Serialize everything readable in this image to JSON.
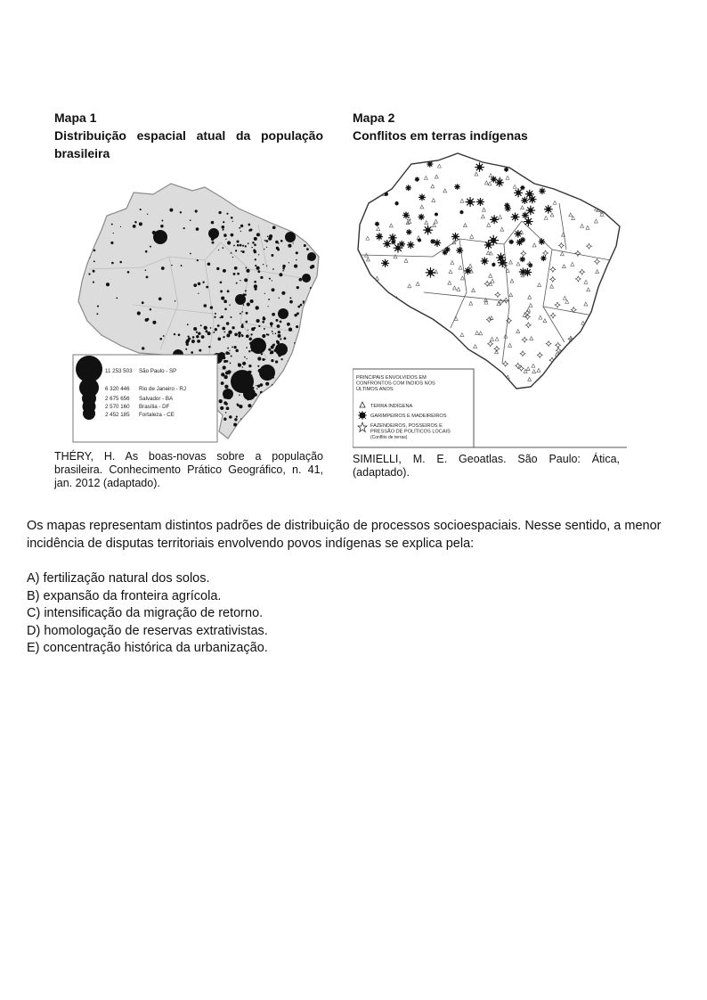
{
  "map1": {
    "heading": "Mapa 1",
    "subtitle": "Distribuição espacial atual da população brasileira",
    "legend": [
      {
        "value": "11 253 503",
        "city": "São Paulo - SP"
      },
      {
        "value": "6 320 446",
        "city": "Rio de Janeiro - RJ"
      },
      {
        "value": "2 675 656",
        "city": "Salvador - BA"
      },
      {
        "value": "2 570 160",
        "city": "Brasília - DF"
      },
      {
        "value": "2 452 185",
        "city": "Fortaleza - CE"
      }
    ],
    "source": "THÉRY, H. As boas-novas sobre a população brasileira. Conhecimento Prático Geográfico, n. 41, jan. 2012 (adaptado)."
  },
  "map2": {
    "heading": "Mapa 2",
    "subtitle": "Conflitos em terras indígenas",
    "legend_title": "PRINCIPAIS ENVOLVIDOS EM CONFRONTOS COM ÍNDIOS NOS ÚLTIMOS ANOS",
    "legend_items": [
      {
        "symbol": "triangle-icon",
        "label": "TERRA INDÍGENA"
      },
      {
        "symbol": "burst-icon",
        "label": "GARIMPEIROS E MADEIREIROS"
      },
      {
        "symbol": "star-outline-icon",
        "label": "FAZENDEIROS, POSSEIROS E PRESSÃO DE POLÍTICOS LOCAIS",
        "note": "(Conflito de terras)"
      }
    ],
    "source": "SIMIELLI, M. E. Geoatlas. São Paulo: Ática, (adaptado)."
  },
  "question": {
    "text": "Os mapas representam distintos padrões de distribuição de processos socioespaciais. Nesse sentido, a menor incidência de disputas territoriais envolvendo povos indígenas se explica pela:",
    "options": [
      "A) fertilização natural dos solos.",
      "B) expansão da fronteira agrícola.",
      "C) intensificação da migração de retorno.",
      "D) homologação de reservas extrativistas.",
      "E) concentração histórica da urbanização."
    ]
  }
}
